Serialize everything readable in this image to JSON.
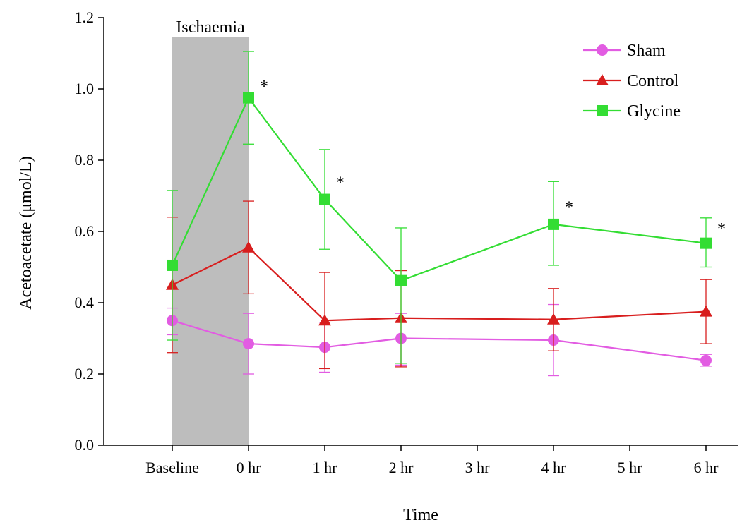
{
  "chart_data": {
    "type": "line",
    "title": "",
    "xlabel": "Time",
    "ylabel": "Acetoacetate (μmol/L)",
    "categories": [
      "Baseline",
      "0 hr",
      "1 hr",
      "2 hr",
      "3 hr",
      "4 hr",
      "5 hr",
      "6 hr"
    ],
    "ylim": [
      0,
      1.2
    ],
    "yticks": [
      "0.0",
      "0.2",
      "0.4",
      "0.6",
      "0.8",
      "1.0",
      "1.2"
    ],
    "grid": false,
    "legend_position": "top-right",
    "shaded_region": {
      "label": "Ischaemia",
      "from": "Baseline",
      "to": "0 hr",
      "color": "#bdbdbd"
    },
    "series": [
      {
        "name": "Sham",
        "color": "#e25ce2",
        "marker": "circle",
        "x": [
          "Baseline",
          "0 hr",
          "1 hr",
          "2 hr",
          "4 hr",
          "6 hr"
        ],
        "values": [
          0.35,
          0.285,
          0.275,
          0.3,
          0.295,
          0.238
        ],
        "err_low": [
          0.31,
          0.2,
          0.205,
          0.225,
          0.195,
          0.222
        ],
        "err_high": [
          0.385,
          0.37,
          0.345,
          0.37,
          0.395,
          0.255
        ]
      },
      {
        "name": "Control",
        "color": "#d81e1e",
        "marker": "triangle",
        "x": [
          "Baseline",
          "0 hr",
          "1 hr",
          "2 hr",
          "4 hr",
          "6 hr"
        ],
        "values": [
          0.45,
          0.555,
          0.35,
          0.357,
          0.353,
          0.375
        ],
        "err_low": [
          0.26,
          0.425,
          0.215,
          0.22,
          0.265,
          0.285
        ],
        "err_high": [
          0.64,
          0.685,
          0.485,
          0.49,
          0.44,
          0.465
        ]
      },
      {
        "name": "Glycine",
        "color": "#33dd33",
        "marker": "square",
        "x": [
          "Baseline",
          "0 hr",
          "1 hr",
          "2 hr",
          "4 hr",
          "6 hr"
        ],
        "values": [
          0.505,
          0.975,
          0.69,
          0.462,
          0.62,
          0.567
        ],
        "err_low": [
          0.295,
          0.845,
          0.55,
          0.23,
          0.505,
          0.5
        ],
        "err_high": [
          0.715,
          1.105,
          0.83,
          0.61,
          0.74,
          0.638
        ]
      }
    ],
    "annotations": [
      {
        "text": "*",
        "x": "0 hr",
        "y": 1.02
      },
      {
        "text": "*",
        "x": "1 hr",
        "y": 0.75
      },
      {
        "text": "*",
        "x": "4 hr",
        "y": 0.68
      },
      {
        "text": "*",
        "x": "6 hr",
        "y": 0.62
      }
    ]
  }
}
